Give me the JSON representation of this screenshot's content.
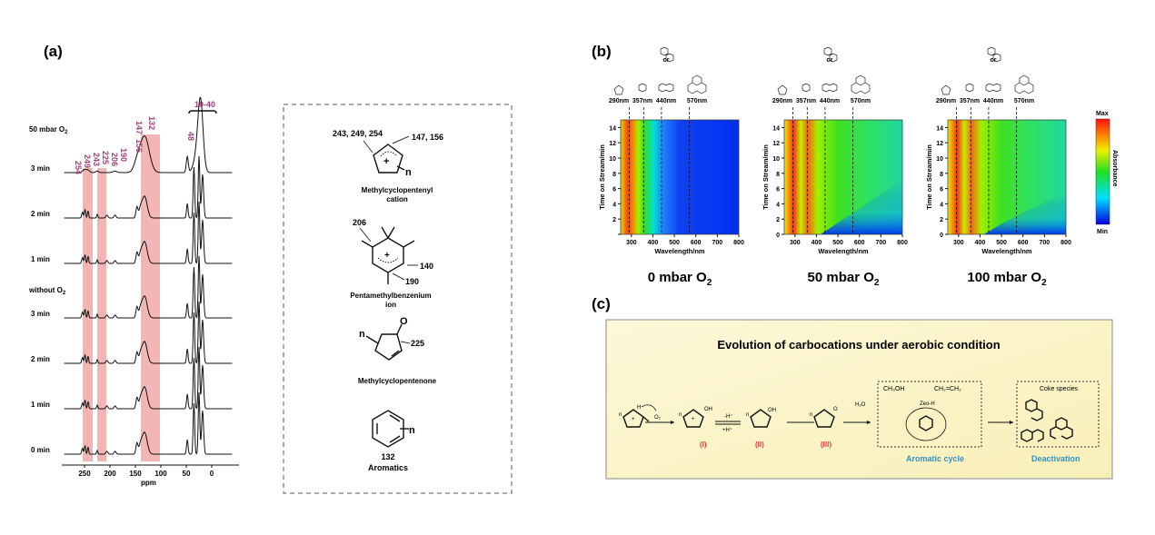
{
  "panel_a": {
    "label": "(a)",
    "condition_o2": "50 mbar O",
    "condition_o2_sub": "2",
    "without_o2": "without O",
    "without_o2_sub": "2",
    "rows": [
      "3 min",
      "2 min",
      "1 min",
      "3 min",
      "2 min",
      "1 min",
      "0 min"
    ],
    "peak_labels": [
      "254",
      "249",
      "243",
      "225",
      "206",
      "190",
      "147",
      "156",
      "132",
      "48"
    ],
    "range_label": "10-40",
    "axis_ticks": [
      "250",
      "200",
      "150",
      "100",
      "50",
      "0"
    ],
    "axis_label": "ppm",
    "highlight_color": "#f1a8a8",
    "peak_label_color": "#a0407a"
  },
  "structures": {
    "items": [
      {
        "name": "Methylcyclopentenyl",
        "name2": "cation",
        "shifts": [
          "243, 249, 254",
          "147, 156"
        ]
      },
      {
        "name": "Pentamethylbenzenium",
        "name2": "ion",
        "shifts": [
          "206",
          "140",
          "190"
        ]
      },
      {
        "name": "Methylcyclopentenone",
        "shifts": [
          "225"
        ]
      },
      {
        "name": "Aromatics",
        "shifts": [
          "132"
        ]
      }
    ],
    "n": "n",
    "o": "O",
    "plus": "+"
  },
  "panel_b": {
    "label": "(b)",
    "wavelength_markers": [
      "290nm",
      "357nm",
      "440nm",
      "570nm"
    ],
    "or": "or",
    "plots": [
      {
        "title": "0 mbar O",
        "sub": "2"
      },
      {
        "title": "50 mbar O",
        "sub": "2"
      },
      {
        "title": "100 mbar O",
        "sub": "2"
      }
    ],
    "ylabel": "Time on Stream/min",
    "xlabel": "Wavelength/nm",
    "yticks": [
      "2",
      "4",
      "6",
      "8",
      "10",
      "12",
      "14"
    ],
    "yticks_zero": "0",
    "xticks": [
      "300",
      "400",
      "500",
      "600",
      "700",
      "800"
    ],
    "colorbar": {
      "max": "Max",
      "min": "Min",
      "label": "Absorbance"
    }
  },
  "panel_c": {
    "label": "(c)",
    "title": "Evolution of carbocations under aerobic condition",
    "o2": "O₂",
    "minus_h": "-H⁺",
    "plus_h": "+H⁺",
    "oh": "OH",
    "h": "H",
    "o": "O",
    "n": "n",
    "h2o": "H₂O",
    "methanol": "CH₃OH",
    "ethene": "CH₂=CH₂",
    "zeo": "Zeo-H",
    "coke": "Coke species",
    "species": [
      "(I)",
      "(II)",
      "(III)"
    ],
    "aromatic_cycle": "Aromatic cycle",
    "deactivation": "Deactivation",
    "species_color": "#e8393a",
    "caption_color": "#3a8fc0",
    "bg": "#fbf5cf"
  }
}
